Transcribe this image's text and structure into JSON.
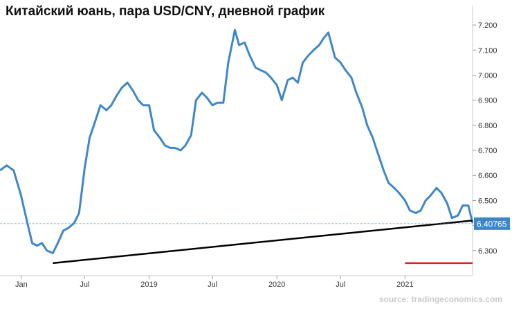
{
  "chart_data": {
    "type": "line",
    "title": "Китайский юань, пара USD/CNY, дневной график",
    "source": "source: tradingeconomics.com",
    "ylim": [
      6.2,
      7.25
    ],
    "y_ticks": [
      6.3,
      6.4,
      6.5,
      6.6,
      6.7,
      6.8,
      6.9,
      7.0,
      7.1,
      7.2
    ],
    "y_tick_labels": [
      "6.300",
      "",
      "6.500",
      "6.600",
      "6.700",
      "6.800",
      "6.900",
      "7.000",
      "7.100",
      "7.200"
    ],
    "x_range": [
      "2017-11-01",
      "2021-07-13"
    ],
    "x_ticks": [
      {
        "date": "2018-01-01",
        "label": "Jan"
      },
      {
        "date": "2018-07-01",
        "label": "Jul"
      },
      {
        "date": "2019-01-01",
        "label": "2019"
      },
      {
        "date": "2019-07-01",
        "label": "Jul"
      },
      {
        "date": "2020-01-01",
        "label": "2020"
      },
      {
        "date": "2020-07-01",
        "label": "Jul"
      },
      {
        "date": "2021-01-01",
        "label": "2021"
      }
    ],
    "last_value": 6.40765,
    "last_value_label": "6.40765",
    "colors": {
      "series": "#3d87c8",
      "trendline": "#000000",
      "marker": "#e02020",
      "last_badge": "#3d87c8"
    },
    "series": [
      {
        "x": [
          "2017-11-01",
          "2017-11-20",
          "2017-12-10",
          "2017-12-31",
          "2018-01-15",
          "2018-02-01",
          "2018-02-15",
          "2018-03-01",
          "2018-03-15",
          "2018-04-01",
          "2018-04-15",
          "2018-05-01",
          "2018-05-15",
          "2018-06-01",
          "2018-06-15",
          "2018-07-01",
          "2018-07-15",
          "2018-08-01",
          "2018-08-15",
          "2018-09-01",
          "2018-09-15",
          "2018-10-01",
          "2018-10-15",
          "2018-10-31",
          "2018-11-15",
          "2018-12-01",
          "2018-12-15",
          "2019-01-01",
          "2019-01-15",
          "2019-02-01",
          "2019-02-15",
          "2019-03-01",
          "2019-03-15",
          "2019-04-01",
          "2019-04-15",
          "2019-05-01",
          "2019-05-15",
          "2019-06-01",
          "2019-06-15",
          "2019-07-01",
          "2019-07-15",
          "2019-08-01",
          "2019-08-15",
          "2019-09-03",
          "2019-09-15",
          "2019-10-01",
          "2019-10-15",
          "2019-11-01",
          "2019-11-15",
          "2019-12-01",
          "2019-12-15",
          "2020-01-01",
          "2020-01-15",
          "2020-02-01",
          "2020-02-15",
          "2020-03-01",
          "2020-03-15",
          "2020-04-01",
          "2020-04-15",
          "2020-05-01",
          "2020-05-15",
          "2020-05-27",
          "2020-06-15",
          "2020-07-01",
          "2020-07-15",
          "2020-08-01",
          "2020-08-15",
          "2020-09-01",
          "2020-09-15",
          "2020-10-01",
          "2020-10-15",
          "2020-11-01",
          "2020-11-15",
          "2020-12-01",
          "2020-12-15",
          "2021-01-01",
          "2021-01-15",
          "2021-02-01",
          "2021-02-15",
          "2021-03-01",
          "2021-03-15",
          "2021-04-01",
          "2021-04-15",
          "2021-05-01",
          "2021-05-15",
          "2021-06-01",
          "2021-06-15",
          "2021-07-01",
          "2021-07-13"
        ],
        "values": [
          6.62,
          6.64,
          6.62,
          6.52,
          6.43,
          6.33,
          6.32,
          6.33,
          6.3,
          6.29,
          6.33,
          6.38,
          6.39,
          6.41,
          6.45,
          6.63,
          6.75,
          6.82,
          6.88,
          6.86,
          6.88,
          6.92,
          6.95,
          6.97,
          6.94,
          6.9,
          6.88,
          6.88,
          6.78,
          6.75,
          6.72,
          6.71,
          6.71,
          6.7,
          6.72,
          6.76,
          6.9,
          6.93,
          6.91,
          6.88,
          6.89,
          6.89,
          7.05,
          7.18,
          7.12,
          7.13,
          7.08,
          7.03,
          7.02,
          7.01,
          6.99,
          6.96,
          6.9,
          6.98,
          6.99,
          6.97,
          7.05,
          7.08,
          7.1,
          7.12,
          7.15,
          7.17,
          7.07,
          7.05,
          7.02,
          6.99,
          6.93,
          6.87,
          6.8,
          6.75,
          6.69,
          6.62,
          6.57,
          6.55,
          6.53,
          6.5,
          6.46,
          6.45,
          6.46,
          6.5,
          6.52,
          6.55,
          6.53,
          6.49,
          6.43,
          6.44,
          6.48,
          6.48,
          6.41
        ]
      }
    ],
    "trendline": {
      "x": [
        "2018-04-01",
        "2021-07-13"
      ],
      "y": [
        6.25,
        6.42
      ]
    },
    "marker_line": {
      "x": [
        "2021-01-01",
        "2021-07-13"
      ],
      "y": [
        6.25,
        6.25
      ]
    }
  }
}
